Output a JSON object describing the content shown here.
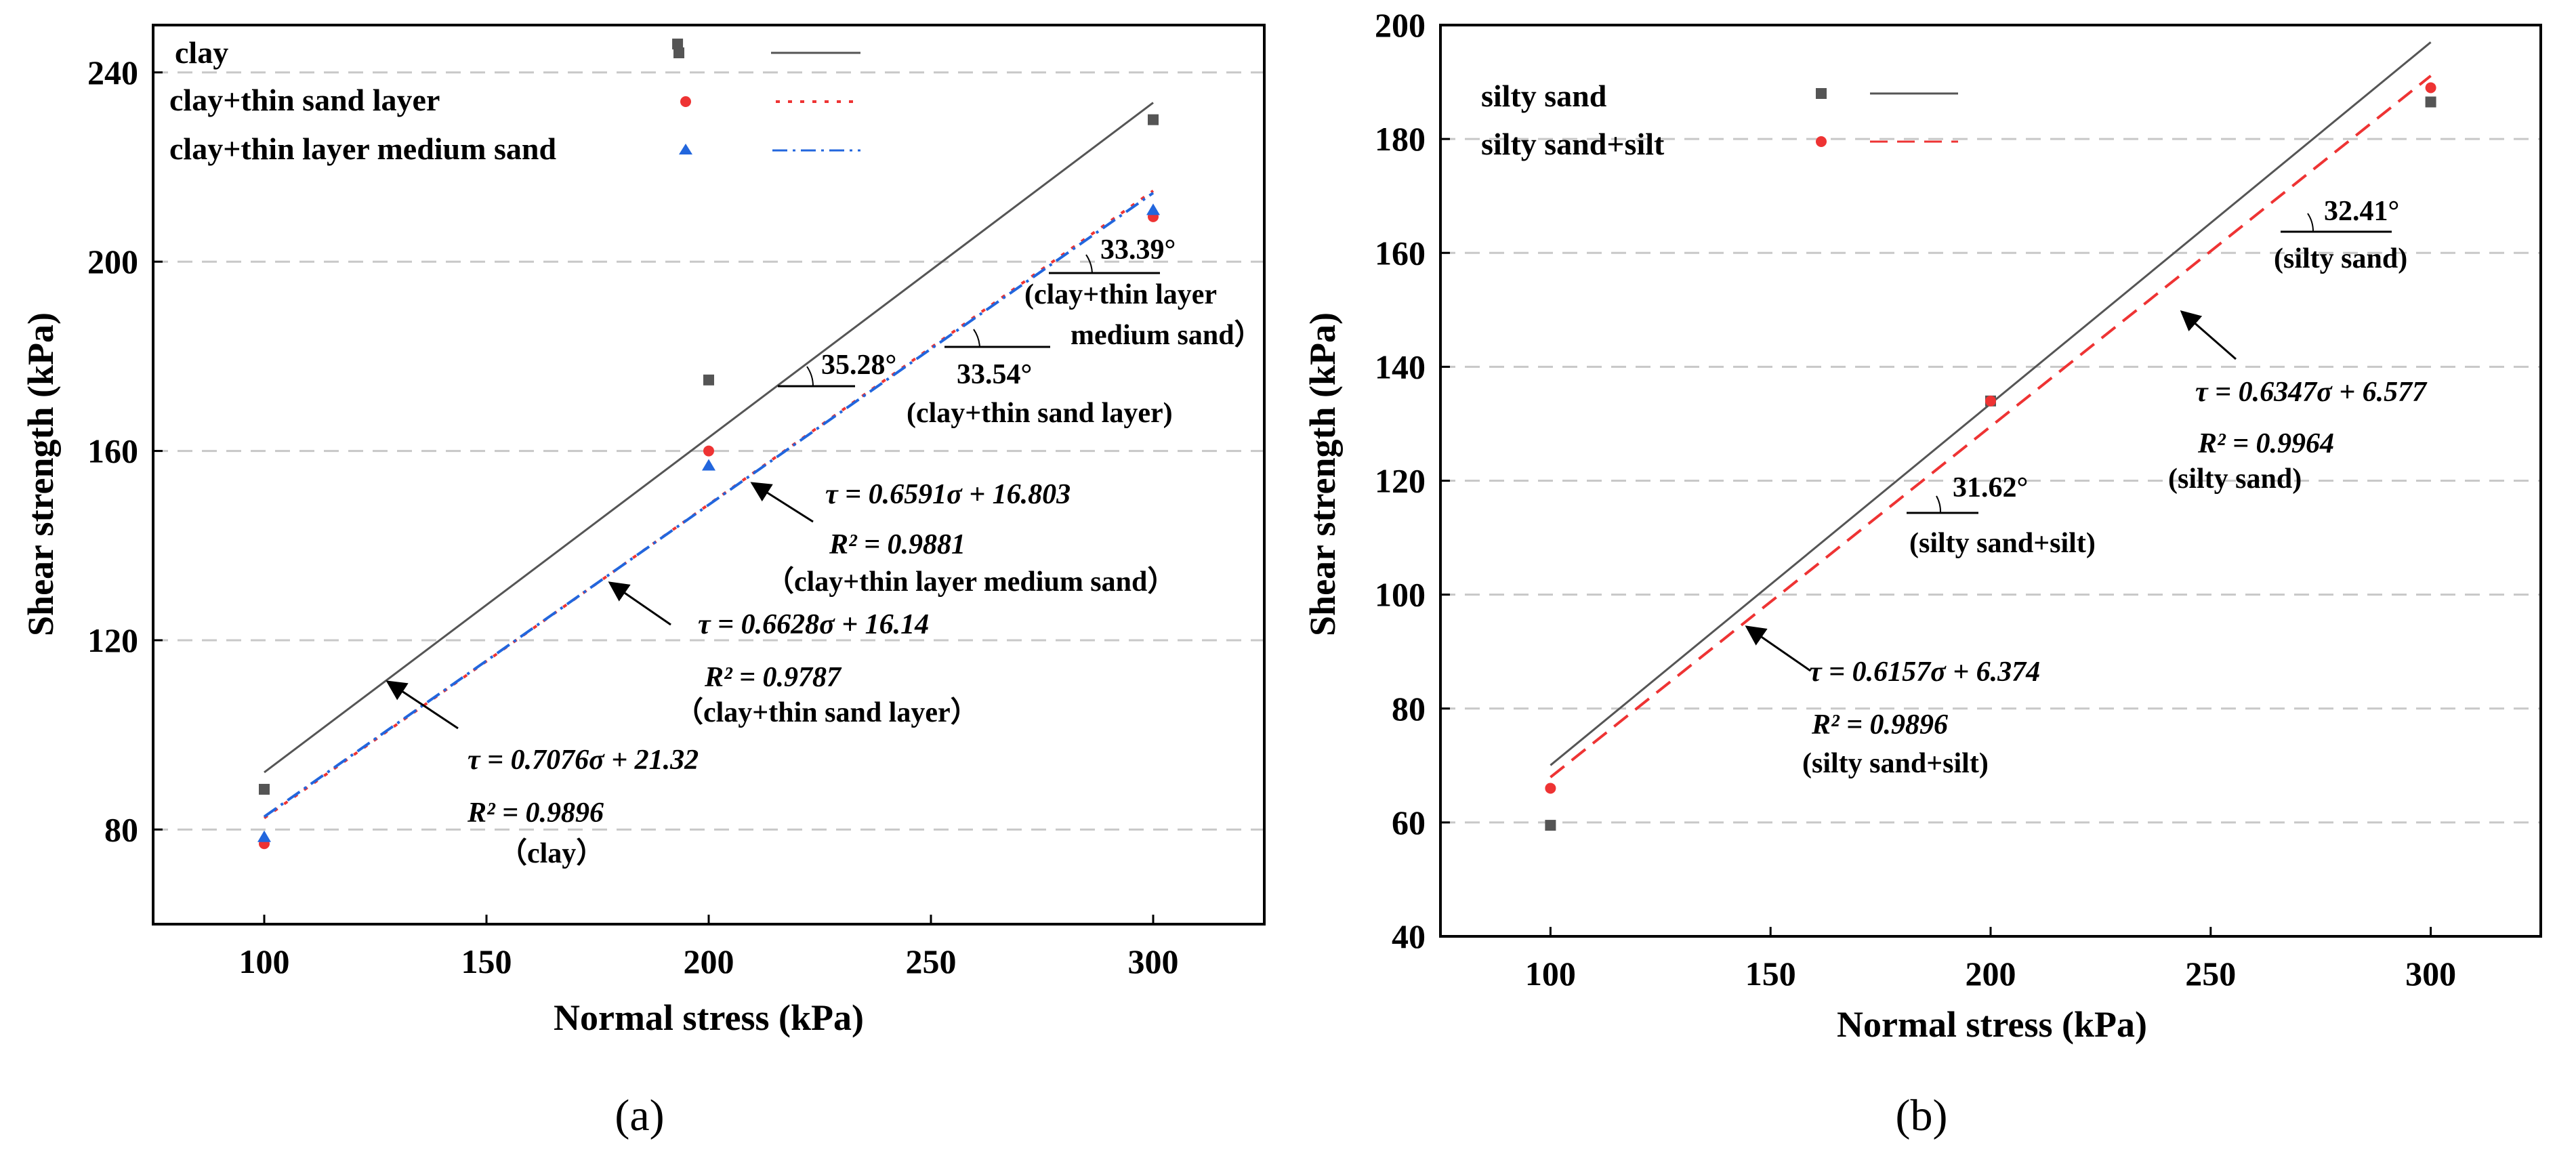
{
  "charts": [
    {
      "id": "a",
      "panel_label": "(a)",
      "type": "scatter",
      "xlabel": "Normal stress (kPa)",
      "ylabel": "Shear strength (kPa)",
      "xlim": [
        75,
        325
      ],
      "ylim": [
        60,
        250
      ],
      "xticks": [
        100,
        150,
        200,
        250,
        300
      ],
      "yticks": [
        80,
        120,
        160,
        200,
        240
      ],
      "series": [
        {
          "name": "clay",
          "color": "#555555",
          "marker": "square",
          "line": "solid",
          "points": [
            [
              100,
              88.5
            ],
            [
              200,
              175
            ],
            [
              300,
              230
            ]
          ],
          "fit": {
            "slope": 0.7076,
            "intercept": 21.32
          }
        },
        {
          "name": "clay+thin sand layer",
          "color": "#ee3333",
          "marker": "circle",
          "line": "dotted",
          "points": [
            [
              100,
              77
            ],
            [
              200,
              160
            ],
            [
              300,
              209.5
            ]
          ],
          "fit": {
            "slope": 0.6628,
            "intercept": 16.14
          }
        },
        {
          "name": "clay+thin layer medium sand",
          "color": "#2266dd",
          "marker": "triangle",
          "line": "dashdot",
          "points": [
            [
              100,
              78.5
            ],
            [
              200,
              157
            ],
            [
              300,
              211
            ]
          ],
          "fit": {
            "slope": 0.6591,
            "intercept": 16.803
          }
        }
      ],
      "legend_extra_point": [
        193,
        246
      ],
      "annotations": {
        "angle_clay": "35.28°",
        "angle_thin_sand": "33.54°",
        "angle_medium": "33.39°",
        "label_thin_sand": "(clay+thin sand layer)",
        "label_medium_1": "(clay+thin layer",
        "label_medium_2": "medium sand）",
        "eq_medium": "τ = 0.6591σ + 16.803",
        "r2_medium": "R² = 0.9881",
        "name_medium": "（clay+thin layer medium sand）",
        "eq_thin": "τ = 0.6628σ + 16.14",
        "r2_thin": "R² = 0.9787",
        "name_thin": "（clay+thin sand layer）",
        "eq_clay": "τ = 0.7076σ + 21.32",
        "r2_clay": "R² = 0.9896",
        "name_clay": "（clay）"
      }
    },
    {
      "id": "b",
      "panel_label": "(b)",
      "type": "scatter",
      "xlabel": "Normal stress (kPa)",
      "ylabel": "Shear strength (kPa)",
      "xlim": [
        75,
        325
      ],
      "ylim": [
        40,
        200
      ],
      "xticks": [
        100,
        150,
        200,
        250,
        300
      ],
      "yticks": [
        40,
        60,
        80,
        100,
        120,
        140,
        160,
        180,
        200
      ],
      "series": [
        {
          "name": "silty sand",
          "color": "#555555",
          "marker": "square",
          "line": "solid",
          "points": [
            [
              100,
              59.5
            ],
            [
              200,
              134
            ],
            [
              300,
              186.5
            ]
          ],
          "fit": {
            "slope": 0.6347,
            "intercept": 6.577
          }
        },
        {
          "name": "silty sand+silt",
          "color": "#ee3333",
          "marker": "circle",
          "line": "dashed",
          "points": [
            [
              100,
              66
            ],
            [
              200,
              134
            ],
            [
              300,
              189
            ]
          ],
          "fit": {
            "slope": 0.6157,
            "intercept": 6.374
          }
        }
      ],
      "annotations": {
        "angle_silty_sand": "32.41°",
        "label_silty_sand": "(silty sand)",
        "eq_silty_sand": "τ = 0.6347σ + 6.577",
        "r2_silty_sand": "R² = 0.9964",
        "name_silty_sand": "(silty sand)",
        "angle_silt": "31.62°",
        "label_silt": "(silty sand+silt)",
        "eq_silt": "τ = 0.6157σ + 6.374",
        "r2_silt": "R² = 0.9896",
        "name_silt": "(silty sand+silt)"
      }
    }
  ]
}
